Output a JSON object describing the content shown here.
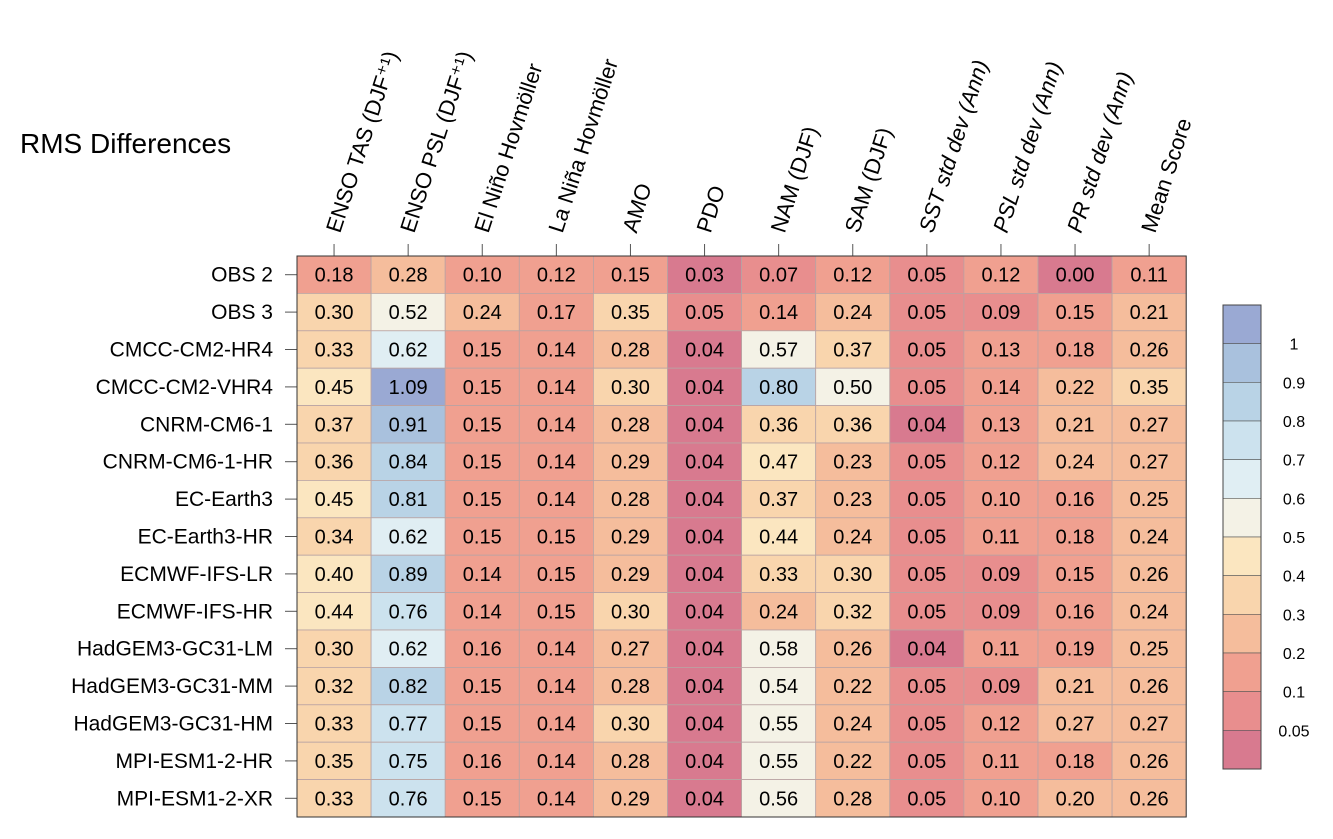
{
  "chart_data": {
    "type": "heatmap",
    "title": "RMS Differences",
    "columns": [
      "ENSO TAS (DJF⁺¹)",
      "ENSO PSL (DJF⁺¹)",
      "El Niño Hovmöller",
      "La Niña Hovmöller",
      "AMO",
      "PDO",
      "NAM (DJF)",
      "SAM (DJF)",
      "SST std dev (Ann)",
      "PSL std dev (Ann)",
      "PR std dev (Ann)",
      "Mean Score"
    ],
    "italic_columns": [
      8,
      9,
      10
    ],
    "rows": [
      "OBS 2",
      "OBS 3",
      "CMCC-CM2-HR4",
      "CMCC-CM2-VHR4",
      "CNRM-CM6-1",
      "CNRM-CM6-1-HR",
      "EC-Earth3",
      "EC-Earth3-HR",
      "ECMWF-IFS-LR",
      "ECMWF-IFS-HR",
      "HadGEM3-GC31-LM",
      "HadGEM3-GC31-MM",
      "HadGEM3-GC31-HM",
      "MPI-ESM1-2-HR",
      "MPI-ESM1-2-XR"
    ],
    "values": [
      [
        "0.18",
        "0.28",
        "0.10",
        "0.12",
        "0.15",
        "0.03",
        "0.07",
        "0.12",
        "0.05",
        "0.12",
        "0.00",
        "0.11"
      ],
      [
        "0.30",
        "0.52",
        "0.24",
        "0.17",
        "0.35",
        "0.05",
        "0.14",
        "0.24",
        "0.05",
        "0.09",
        "0.15",
        "0.21"
      ],
      [
        "0.33",
        "0.62",
        "0.15",
        "0.14",
        "0.28",
        "0.04",
        "0.57",
        "0.37",
        "0.05",
        "0.13",
        "0.18",
        "0.26"
      ],
      [
        "0.45",
        "1.09",
        "0.15",
        "0.14",
        "0.30",
        "0.04",
        "0.80",
        "0.50",
        "0.05",
        "0.14",
        "0.22",
        "0.35"
      ],
      [
        "0.37",
        "0.91",
        "0.15",
        "0.14",
        "0.28",
        "0.04",
        "0.36",
        "0.36",
        "0.04",
        "0.13",
        "0.21",
        "0.27"
      ],
      [
        "0.36",
        "0.84",
        "0.15",
        "0.14",
        "0.29",
        "0.04",
        "0.47",
        "0.23",
        "0.05",
        "0.12",
        "0.24",
        "0.27"
      ],
      [
        "0.45",
        "0.81",
        "0.15",
        "0.14",
        "0.28",
        "0.04",
        "0.37",
        "0.23",
        "0.05",
        "0.10",
        "0.16",
        "0.25"
      ],
      [
        "0.34",
        "0.62",
        "0.15",
        "0.15",
        "0.29",
        "0.04",
        "0.44",
        "0.24",
        "0.05",
        "0.11",
        "0.18",
        "0.24"
      ],
      [
        "0.40",
        "0.89",
        "0.14",
        "0.15",
        "0.29",
        "0.04",
        "0.33",
        "0.30",
        "0.05",
        "0.09",
        "0.15",
        "0.26"
      ],
      [
        "0.44",
        "0.76",
        "0.14",
        "0.15",
        "0.30",
        "0.04",
        "0.24",
        "0.32",
        "0.05",
        "0.09",
        "0.16",
        "0.24"
      ],
      [
        "0.30",
        "0.62",
        "0.16",
        "0.14",
        "0.27",
        "0.04",
        "0.58",
        "0.26",
        "0.04",
        "0.11",
        "0.19",
        "0.25"
      ],
      [
        "0.32",
        "0.82",
        "0.15",
        "0.14",
        "0.28",
        "0.04",
        "0.54",
        "0.22",
        "0.05",
        "0.09",
        "0.21",
        "0.26"
      ],
      [
        "0.33",
        "0.77",
        "0.15",
        "0.14",
        "0.30",
        "0.04",
        "0.55",
        "0.24",
        "0.05",
        "0.12",
        "0.27",
        "0.27"
      ],
      [
        "0.35",
        "0.75",
        "0.16",
        "0.14",
        "0.28",
        "0.04",
        "0.55",
        "0.22",
        "0.05",
        "0.11",
        "0.18",
        "0.26"
      ],
      [
        "0.33",
        "0.76",
        "0.15",
        "0.14",
        "0.29",
        "0.04",
        "0.56",
        "0.28",
        "0.05",
        "0.10",
        "0.20",
        "0.26"
      ]
    ],
    "colorbar": {
      "levels": [
        0.05,
        0.1,
        0.2,
        0.3,
        0.4,
        0.5,
        0.6,
        0.7,
        0.8,
        0.9,
        1
      ],
      "tick_labels": [
        "0.05",
        "0.1",
        "0.2",
        "0.3",
        "0.4",
        "0.5",
        "0.6",
        "0.7",
        "0.8",
        "0.9",
        "1"
      ],
      "colors": [
        "#d87a8f",
        "#e88e8e",
        "#f0a090",
        "#f5bd9c",
        "#f9d5ad",
        "#fbe6c0",
        "#f4f2e6",
        "#e0eef3",
        "#cce2ee",
        "#b9d3e6",
        "#a9c1dd",
        "#9aa9d3"
      ],
      "placement": "right"
    },
    "grid": true
  }
}
